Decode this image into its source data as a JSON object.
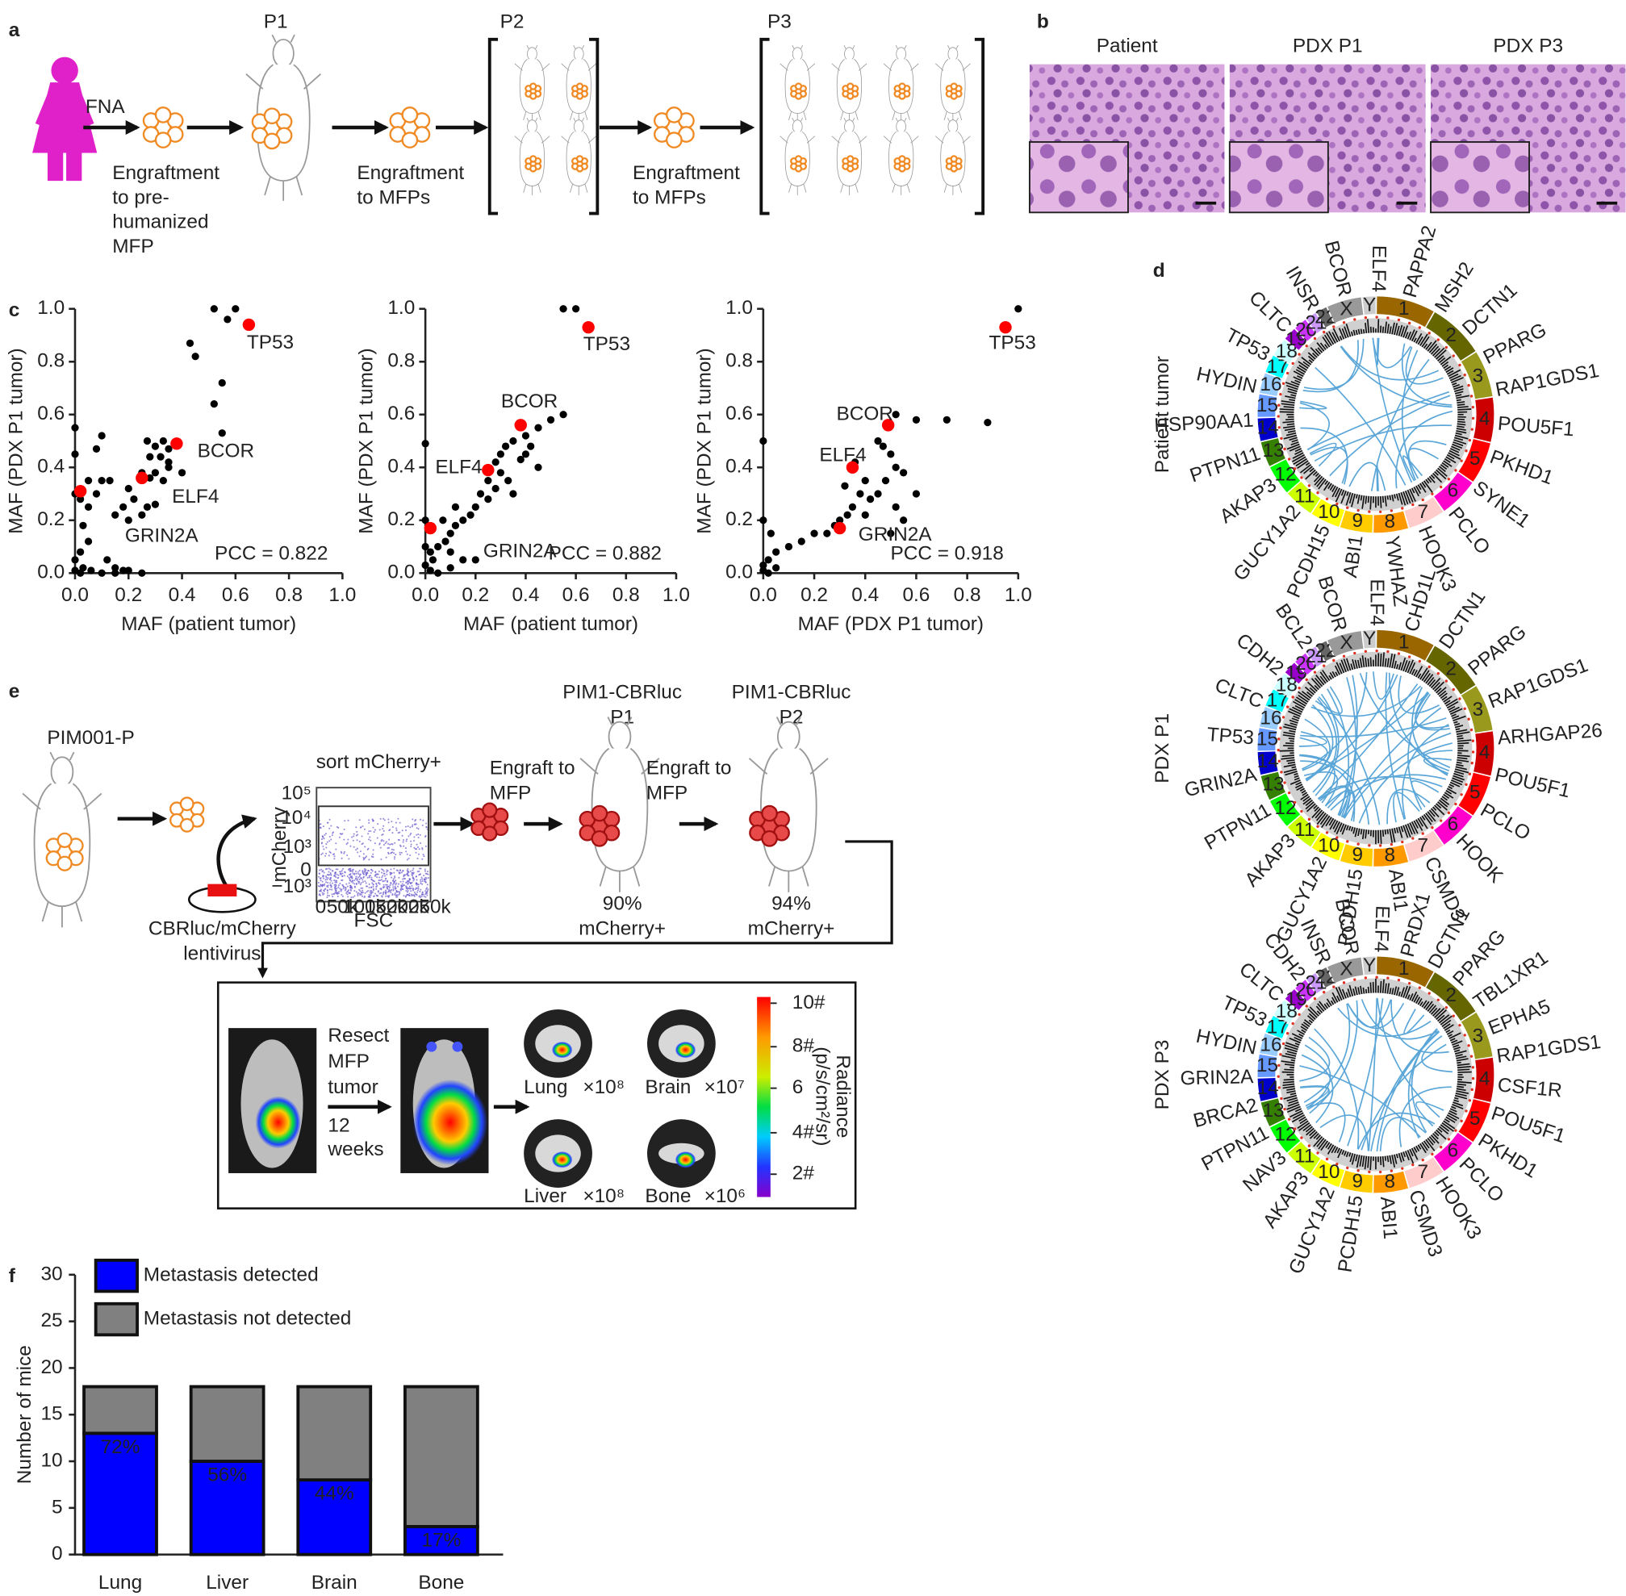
{
  "panel_labels": [
    "a",
    "b",
    "c",
    "d",
    "e",
    "f"
  ],
  "panel_a": {
    "fna": "FNA",
    "passages": [
      "P1",
      "P2",
      "P3"
    ],
    "step1": [
      "Engraftment",
      "to pre-",
      "humanized",
      "MFP"
    ],
    "step2": [
      "Engraftment",
      "to MFPs"
    ],
    "step3": [
      "Engraftment",
      "to MFPs"
    ]
  },
  "panel_b": {
    "titles": [
      "Patient",
      "PDX P1",
      "PDX P3"
    ]
  },
  "chart_data": [
    {
      "type": "scatter",
      "xlabel": "MAF (patient tumor)",
      "ylabel": "MAF (PDX P1 tumor)",
      "annotation": "PCC = 0.822",
      "color": "#000000",
      "x": [
        0.52,
        0.6,
        0.57,
        0.43,
        0.45,
        0.55,
        0.52,
        0.55,
        0.0,
        0.0,
        0.1,
        0.08,
        0.27,
        0.3,
        0.33,
        0.35,
        0.28,
        0.32,
        0.35,
        0.25,
        0.28,
        0.3,
        0.33,
        0.2,
        0.22,
        0.18,
        0.15,
        0.2,
        0.25,
        0.27,
        0.1,
        0.08,
        0.05,
        0.13,
        0.03,
        0.05,
        0.02,
        0.0,
        0.03,
        0.06,
        0.1,
        0.15,
        0.2,
        0.0,
        0.02,
        0.12,
        0.05,
        0.0,
        0.02,
        0.15,
        0.25,
        0.18,
        0.3,
        0.35,
        0.4
      ],
      "values": [
        1.0,
        1.0,
        0.96,
        0.87,
        0.82,
        0.72,
        0.64,
        0.53,
        0.55,
        0.45,
        0.52,
        0.47,
        0.5,
        0.48,
        0.5,
        0.47,
        0.44,
        0.44,
        0.42,
        0.38,
        0.36,
        0.38,
        0.35,
        0.32,
        0.28,
        0.25,
        0.22,
        0.2,
        0.22,
        0.25,
        0.35,
        0.3,
        0.25,
        0.35,
        0.18,
        0.12,
        0.08,
        0.05,
        0.02,
        0.01,
        0.0,
        0.02,
        0.01,
        0.01,
        0.0,
        0.05,
        0.35,
        0.3,
        0.28,
        0.0,
        0.0,
        0.01,
        0.26,
        0.4,
        0.38
      ],
      "highlights": {
        "color": "#ff0000",
        "labels": [
          "TP53",
          "BCOR",
          "ELF4",
          "GRIN2A"
        ],
        "x": [
          0.65,
          0.38,
          0.25,
          0.02
        ],
        "values": [
          0.94,
          0.49,
          0.36,
          0.31
        ]
      },
      "xlim": [
        0,
        1
      ],
      "ylim": [
        0,
        1
      ],
      "xticks": [
        {
          "value": 0,
          "label": "0.0"
        },
        0.2,
        0.4,
        0.6,
        0.8,
        {
          "value": 1,
          "label": "1.0"
        }
      ],
      "yticks": [
        {
          "value": 0,
          "label": "0.0"
        },
        0.2,
        0.4,
        0.6,
        0.8,
        {
          "value": 1,
          "label": "1.0"
        }
      ]
    },
    {
      "type": "scatter",
      "xlabel": "MAF (patient tumor)",
      "ylabel": "MAF (PDX P1 tumor)",
      "annotation": "PCC = 0.882",
      "color": "#000000",
      "x": [
        0.55,
        0.6,
        0.55,
        0.5,
        0.45,
        0.4,
        0.35,
        0.32,
        0.3,
        0.28,
        0.3,
        0.33,
        0.35,
        0.25,
        0.22,
        0.2,
        0.18,
        0.15,
        0.12,
        0.1,
        0.08,
        0.05,
        0.03,
        0.0,
        0.02,
        0.05,
        0.1,
        0.15,
        0.0,
        0.0,
        0.02,
        0.07,
        0.12,
        0.25,
        0.28,
        0.4,
        0.45,
        0.42,
        0.38,
        0.2,
        0.1,
        0.0
      ],
      "values": [
        1.0,
        1.0,
        0.6,
        0.58,
        0.55,
        0.52,
        0.5,
        0.48,
        0.45,
        0.42,
        0.38,
        0.35,
        0.3,
        0.35,
        0.3,
        0.25,
        0.22,
        0.2,
        0.18,
        0.15,
        0.12,
        0.1,
        0.05,
        0.03,
        0.01,
        0.0,
        0.02,
        0.05,
        0.49,
        0.1,
        0.08,
        0.2,
        0.25,
        0.28,
        0.32,
        0.45,
        0.4,
        0.48,
        0.43,
        0.05,
        0.08,
        0.2
      ],
      "highlights": {
        "color": "#ff0000",
        "labels": [
          "TP53",
          "BCOR",
          "ELF4",
          "GRIN2A"
        ],
        "x": [
          0.65,
          0.38,
          0.25,
          0.02
        ],
        "values": [
          0.93,
          0.56,
          0.39,
          0.17
        ]
      },
      "xlim": [
        0,
        1
      ],
      "ylim": [
        0,
        1
      ],
      "xticks": [
        {
          "value": 0,
          "label": "0.0"
        },
        0.2,
        0.4,
        0.6,
        0.8,
        {
          "value": 1,
          "label": "1.0"
        }
      ],
      "yticks": [
        {
          "value": 0,
          "label": "0.0"
        },
        0.2,
        0.4,
        0.6,
        0.8,
        {
          "value": 1,
          "label": "1.0"
        }
      ]
    },
    {
      "type": "scatter",
      "xlabel": "MAF (PDX P1 tumor)",
      "ylabel": "MAF (PDX P1 tumor)",
      "annotation": "PCC = 0.918",
      "color": "#000000",
      "x": [
        1.0,
        0.52,
        0.6,
        0.72,
        0.88,
        0.45,
        0.47,
        0.5,
        0.52,
        0.55,
        0.48,
        0.45,
        0.52,
        0.42,
        0.4,
        0.38,
        0.35,
        0.33,
        0.3,
        0.28,
        0.25,
        0.2,
        0.15,
        0.1,
        0.05,
        0.02,
        0.0,
        0.02,
        0.05,
        0.0,
        0.0,
        0.03,
        0.4,
        0.55,
        0.5,
        0.6,
        0.36,
        0.32,
        0.0
      ],
      "values": [
        1.0,
        0.6,
        0.58,
        0.58,
        0.57,
        0.5,
        0.48,
        0.45,
        0.4,
        0.38,
        0.35,
        0.3,
        0.25,
        0.28,
        0.35,
        0.3,
        0.25,
        0.22,
        0.2,
        0.18,
        0.15,
        0.15,
        0.12,
        0.1,
        0.08,
        0.05,
        0.03,
        0.0,
        0.02,
        0.5,
        0.2,
        0.15,
        0.22,
        0.2,
        0.15,
        0.3,
        0.42,
        0.33,
        0.01
      ],
      "highlights": {
        "color": "#ff0000",
        "labels": [
          "TP53",
          "BCOR",
          "ELF4",
          "GRIN2A"
        ],
        "x": [
          0.95,
          0.49,
          0.35,
          0.3
        ],
        "values": [
          0.93,
          0.56,
          0.4,
          0.17
        ]
      },
      "xlim": [
        0,
        1
      ],
      "ylim": [
        0,
        1
      ],
      "xticks": [
        {
          "value": 0,
          "label": "0.0"
        },
        0.2,
        0.4,
        0.6,
        0.8,
        {
          "value": 1,
          "label": "1.0"
        }
      ],
      "yticks": [
        {
          "value": 0,
          "label": "0.0"
        },
        0.2,
        0.4,
        0.6,
        0.8,
        {
          "value": 1,
          "label": "1.0"
        }
      ]
    },
    {
      "type": "stacked-bar",
      "ylabel": "Number of mice",
      "categories": [
        "Lung",
        "Liver",
        "Brain",
        "Bone"
      ],
      "series": [
        {
          "name": "Metastasis detected",
          "color": "#0000ff",
          "values": [
            13,
            10,
            8,
            3
          ],
          "inside_labels": [
            "72%",
            "56%",
            "44%",
            "17%"
          ]
        },
        {
          "name": "Metastasis not detected",
          "color": "#808080",
          "values": [
            5,
            8,
            10,
            15
          ]
        }
      ],
      "ylim": [
        0,
        30
      ],
      "yticks": [
        0,
        5,
        10,
        15,
        20,
        25,
        30
      ]
    }
  ],
  "panel_d": {
    "row_labels": [
      "Patient tumor",
      "PDX P1",
      "PDX P3"
    ],
    "chromosomes": [
      "1",
      "2",
      "3",
      "4",
      "5",
      "6",
      "7",
      "8",
      "9",
      "10",
      "11",
      "12",
      "13",
      "14",
      "15",
      "16",
      "17",
      "18",
      "19",
      "20",
      "21",
      "22",
      "X",
      "Y"
    ],
    "genes": [
      [
        "PAPPA2",
        "MSH2",
        "DCTN1",
        "PPARG",
        "RAP1GDS1",
        "POU5F1",
        "PKHD1",
        "SYNE1",
        "PCLO",
        "HOOK3",
        "YWHAZ",
        "ABI1",
        "PCDH15",
        "GUCY1A2",
        "AKAP3",
        "PTPN11",
        "HSP90AA1",
        "HYDIN",
        "TP53",
        "CLTC",
        "INSR",
        "BCOR",
        "ELF4"
      ],
      [
        "CHD1L",
        "DCTN1",
        "PPARG",
        "RAP1GDS1",
        "ARHGAP26",
        "POU5F1",
        "PCLO",
        "HOOK",
        "CSMD3",
        "ABI1",
        "PCDH15",
        "GUCY1A2",
        "AKAP3",
        "PTPN11",
        "GRIN2A",
        "TP53",
        "CLTC",
        "CDH2",
        "BCL2",
        "BCOR",
        "ELF4"
      ],
      [
        "PRDX1",
        "DCTN1",
        "PPARG",
        "TBL1XR1",
        "EPHA5",
        "RAP1GDS1",
        "CSF1R",
        "POU5F1",
        "PKHD1",
        "PCLO",
        "HOOK3",
        "CSMD3",
        "ABI1",
        "PCDH15",
        "GUCY1A2",
        "AKAP3",
        "NAV3",
        "PTPN11",
        "BRCA2",
        "GRIN2A",
        "HYDIN",
        "TP53",
        "CLTC",
        "CDH2",
        "INSR",
        "BCOR",
        "ELF4"
      ]
    ]
  },
  "panel_e": {
    "source": "PIM001-P",
    "vector": [
      "CBRluc/mCherry",
      "lentivirus"
    ],
    "sort": "sort mCherry+",
    "flow_ylabel": "mCherry",
    "flow_xlabel": "FSC",
    "flow_xticks": [
      "0",
      "50k",
      "100k",
      "150k",
      "200k",
      "250k"
    ],
    "flow_yticks": [
      "10⁵",
      "10⁴",
      "10³",
      "0",
      "−10³"
    ],
    "engraft": [
      "Engraft to",
      "MFP"
    ],
    "p1_title": [
      "PIM1-CBRluc",
      "P1"
    ],
    "p2_title": [
      "PIM1-CBRluc",
      "P2"
    ],
    "p1_purity": [
      "90%",
      "mCherry+"
    ],
    "p2_purity": [
      "94%",
      "mCherry+"
    ],
    "resect": [
      "Resect",
      "MFP",
      "tumor",
      "12",
      "weeks"
    ],
    "organs": [
      {
        "name": "Lung",
        "scale": "×10⁸"
      },
      {
        "name": "Brain",
        "scale": "×10⁷"
      },
      {
        "name": "Liver",
        "scale": "×10⁸"
      },
      {
        "name": "Bone",
        "scale": "×10⁶"
      }
    ],
    "colorbar_labels": [
      "10#",
      "8#",
      "6",
      "4#",
      "2#"
    ],
    "colorbar_title": [
      "Radiance",
      "(p/s/cm²/sr)"
    ]
  }
}
